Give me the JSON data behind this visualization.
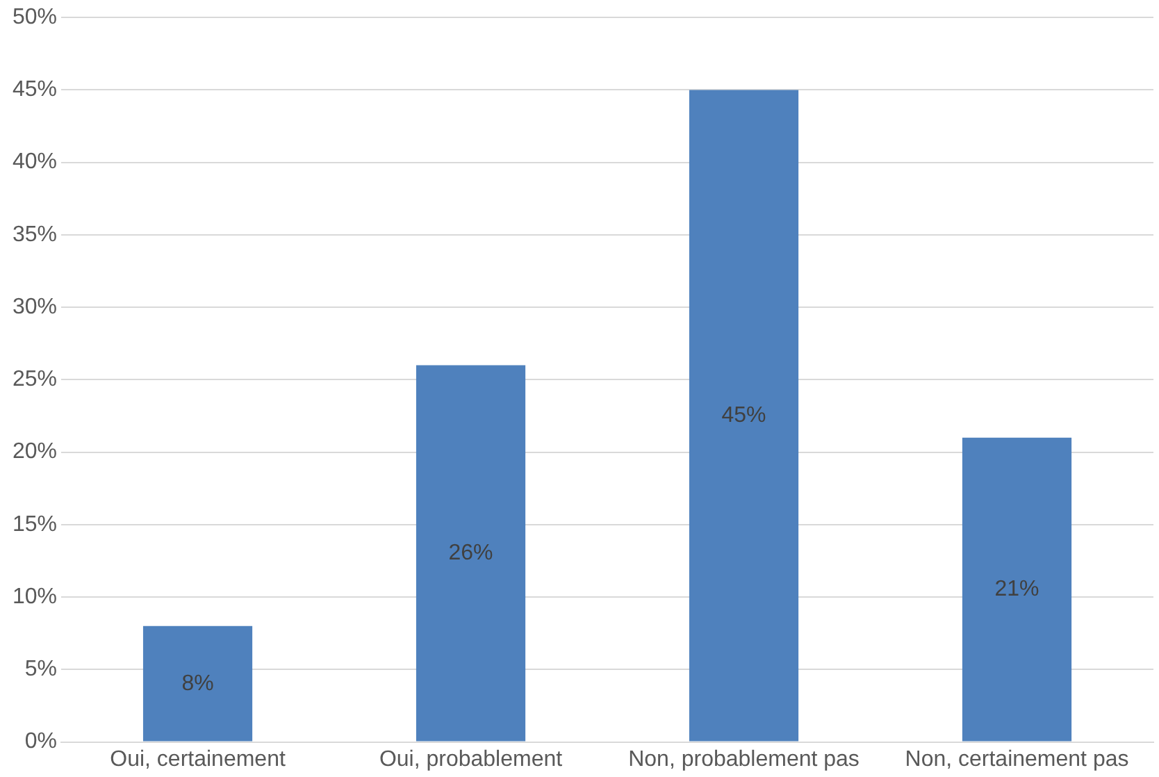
{
  "chart_data": {
    "type": "bar",
    "categories": [
      "Oui, certainement",
      "Oui, probablement",
      "Non, probablement pas",
      "Non, certainement pas"
    ],
    "values": [
      8,
      26,
      45,
      21
    ],
    "color": "#4f81bd",
    "ylim": [
      0,
      50
    ],
    "yticks": [
      {
        "value": 0,
        "label": "0%"
      },
      {
        "value": 5,
        "label": "5%"
      },
      {
        "value": 10,
        "label": "10%"
      },
      {
        "value": 15,
        "label": "15%"
      },
      {
        "value": 20,
        "label": "20%"
      },
      {
        "value": 25,
        "label": "25%"
      },
      {
        "value": 30,
        "label": "30%"
      },
      {
        "value": 35,
        "label": "35%"
      },
      {
        "value": 40,
        "label": "40%"
      },
      {
        "value": 45,
        "label": "45%"
      },
      {
        "value": 50,
        "label": "50%"
      }
    ],
    "value_labels": [
      "8%",
      "26%",
      "45%",
      "21%"
    ],
    "grid": "y"
  }
}
